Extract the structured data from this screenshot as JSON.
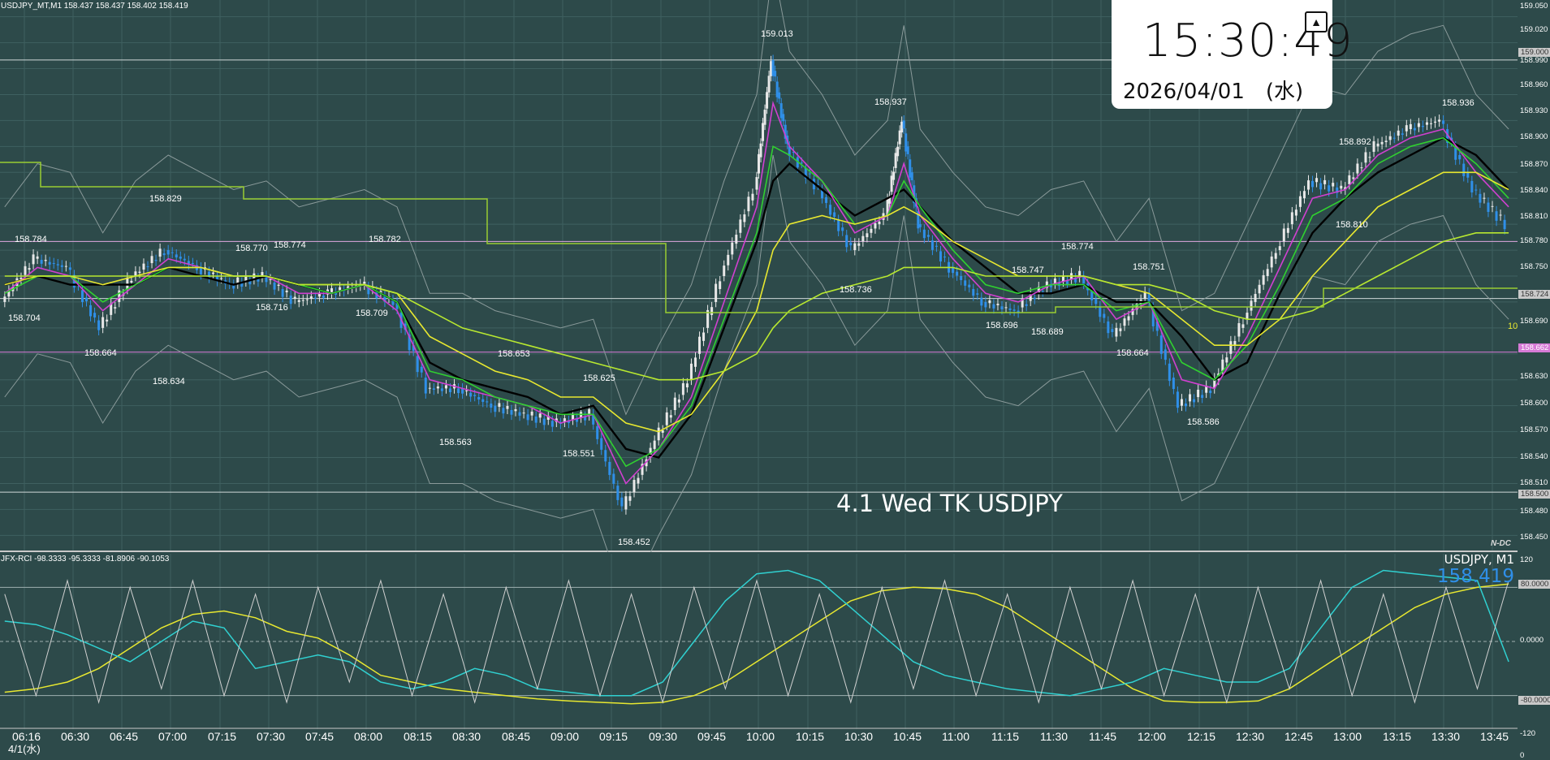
{
  "header": {
    "info": "USDJPY_MT,M1  158.437 158.437 158.402 158.419"
  },
  "clock": {
    "time": "15:30:49",
    "date": "2026/04/01　(水)",
    "pin_icon": "pin-icon"
  },
  "chart_label": "4.1 Wed TK USDJPY",
  "symbol_label": "USDJPY, M1",
  "symbol_price": "158.419",
  "nav_badge": "N-DC",
  "rci_info": "JFX-RCI -98.3333 -95.3333 -81.8906 -90.1053",
  "date_label": "4/1(水)",
  "extreme_labels": [
    {
      "text": "158.784"
    },
    {
      "text": "158.704"
    },
    {
      "text": "158.664"
    },
    {
      "text": "158.829"
    },
    {
      "text": "158.634"
    },
    {
      "text": "158.770"
    },
    {
      "text": "158.774"
    },
    {
      "text": "158.716"
    },
    {
      "text": "158.782"
    },
    {
      "text": "158.709"
    },
    {
      "text": "158.563"
    },
    {
      "text": "158.653"
    },
    {
      "text": "158.551"
    },
    {
      "text": "158.625"
    },
    {
      "text": "158.452"
    },
    {
      "text": "159.013"
    },
    {
      "text": "158.937"
    },
    {
      "text": "158.736"
    },
    {
      "text": "158.747"
    },
    {
      "text": "158.696"
    },
    {
      "text": "158.689"
    },
    {
      "text": "158.774"
    },
    {
      "text": "158.751"
    },
    {
      "text": "158.664"
    },
    {
      "text": "158.586"
    },
    {
      "text": "158.892"
    },
    {
      "text": "158.810"
    },
    {
      "text": "158.936"
    }
  ],
  "time_axis": [
    "06:16",
    "06:30",
    "06:45",
    "07:00",
    "07:15",
    "07:30",
    "07:45",
    "08:00",
    "08:15",
    "08:30",
    "08:45",
    "09:00",
    "09:15",
    "09:30",
    "09:45",
    "10:00",
    "10:15",
    "10:30",
    "10:45",
    "11:00",
    "11:15",
    "11:30",
    "11:45",
    "12:00",
    "12:15",
    "12:30",
    "12:45",
    "13:00",
    "13:15",
    "13:30",
    "13:45"
  ],
  "price_axis": [
    {
      "text": "159.050"
    },
    {
      "text": "159.020"
    },
    {
      "text": "159.000",
      "style": "boxed"
    },
    {
      "text": "158.990"
    },
    {
      "text": "158.960"
    },
    {
      "text": "158.930"
    },
    {
      "text": "158.900"
    },
    {
      "text": "158.870"
    },
    {
      "text": "158.840"
    },
    {
      "text": "158.810"
    },
    {
      "text": "158.780"
    },
    {
      "text": "158.750"
    },
    {
      "text": "158.724",
      "style": "boxed"
    },
    {
      "text": "158.690"
    },
    {
      "text": "158.662",
      "style": "boxed-pink"
    },
    {
      "text": "158.630"
    },
    {
      "text": "158.600"
    },
    {
      "text": "158.570"
    },
    {
      "text": "158.540"
    },
    {
      "text": "158.510"
    },
    {
      "text": "158.500",
      "style": "boxed"
    },
    {
      "text": "158.480"
    },
    {
      "text": "158.450"
    }
  ],
  "rci_axis": [
    {
      "text": "120"
    },
    {
      "text": "80.0000",
      "style": "boxed"
    },
    {
      "text": "0.0000"
    },
    {
      "text": "-80.0000",
      "style": "boxed"
    },
    {
      "text": "-120"
    },
    {
      "text": "0"
    }
  ],
  "counter_label": "10",
  "chart_data": {
    "type": "line",
    "title": "4.1 Wed TK USDJPY",
    "symbol": "USDJPY",
    "timeframe": "M1",
    "ylim": [
      158.44,
      159.06
    ],
    "x_ticks": [
      "06:16",
      "06:30",
      "06:45",
      "07:00",
      "07:15",
      "07:30",
      "07:45",
      "08:00",
      "08:15",
      "08:30",
      "08:45",
      "09:00",
      "09:15",
      "09:30",
      "09:45",
      "10:00",
      "10:15",
      "10:30",
      "10:45",
      "11:00",
      "11:15",
      "11:30",
      "11:45",
      "12:00",
      "12:15",
      "12:30",
      "12:45",
      "13:00",
      "13:15",
      "13:30",
      "13:45"
    ],
    "horizontal_lines": [
      {
        "value": 159.0,
        "color": "#cfd8d8"
      },
      {
        "value": 158.79,
        "color": "#e0a8e0"
      },
      {
        "value": 158.724,
        "color": "#cfd8d8"
      },
      {
        "value": 158.662,
        "color": "#d67ad6"
      },
      {
        "value": 158.5,
        "color": "#cfd8d8"
      }
    ],
    "price_path": {
      "x": [
        "06:10",
        "06:20",
        "06:30",
        "06:40",
        "06:50",
        "07:00",
        "07:10",
        "07:20",
        "07:30",
        "07:40",
        "07:50",
        "08:00",
        "08:10",
        "08:20",
        "08:30",
        "08:40",
        "08:50",
        "09:00",
        "09:10",
        "09:20",
        "09:30",
        "09:40",
        "09:50",
        "10:00",
        "10:05",
        "10:10",
        "10:20",
        "10:30",
        "10:40",
        "10:45",
        "10:50",
        "11:00",
        "11:10",
        "11:20",
        "11:30",
        "11:40",
        "11:50",
        "12:00",
        "12:10",
        "12:20",
        "12:30",
        "12:40",
        "12:50",
        "13:00",
        "13:10",
        "13:20",
        "13:30",
        "13:40",
        "13:50"
      ],
      "y": [
        158.72,
        158.77,
        158.76,
        158.69,
        158.75,
        158.78,
        158.76,
        158.74,
        158.75,
        158.72,
        158.73,
        158.74,
        158.72,
        158.62,
        158.62,
        158.6,
        158.59,
        158.58,
        158.59,
        158.48,
        158.56,
        158.63,
        158.75,
        158.85,
        159.0,
        158.9,
        158.85,
        158.78,
        158.82,
        158.93,
        158.81,
        158.76,
        158.72,
        158.71,
        158.74,
        158.75,
        158.68,
        158.73,
        158.6,
        158.62,
        158.7,
        158.78,
        158.86,
        158.85,
        158.9,
        158.92,
        158.93,
        158.85,
        158.81
      ]
    },
    "series": [
      {
        "color": "#000000",
        "values": [
          158.74,
          158.75,
          158.74,
          158.74,
          158.74,
          158.76,
          158.75,
          158.74,
          158.75,
          158.74,
          158.73,
          158.74,
          158.72,
          158.65,
          158.63,
          158.62,
          158.61,
          158.59,
          158.6,
          158.55,
          158.54,
          158.59,
          158.69,
          158.79,
          158.86,
          158.88,
          158.85,
          158.82,
          158.84,
          158.85,
          158.83,
          158.79,
          158.76,
          158.73,
          158.73,
          158.74,
          158.72,
          158.72,
          158.68,
          158.63,
          158.65,
          158.73,
          158.8,
          158.84,
          158.87,
          158.89,
          158.91,
          158.89,
          158.85
        ]
      },
      {
        "color": "#d040d0",
        "values": [
          158.73,
          158.76,
          158.75,
          158.71,
          158.74,
          158.77,
          158.76,
          158.75,
          158.75,
          158.73,
          158.73,
          158.74,
          158.71,
          158.63,
          158.62,
          158.61,
          158.6,
          158.58,
          158.59,
          158.51,
          158.55,
          158.61,
          158.72,
          158.83,
          158.95,
          158.9,
          158.86,
          158.8,
          158.82,
          158.88,
          158.82,
          158.77,
          158.73,
          158.72,
          158.74,
          158.75,
          158.7,
          158.72,
          158.63,
          158.62,
          158.68,
          158.76,
          158.84,
          158.85,
          158.89,
          158.91,
          158.92,
          158.87,
          158.83
        ]
      },
      {
        "color": "#30d030",
        "values": [
          158.73,
          158.75,
          158.75,
          158.72,
          158.74,
          158.76,
          158.76,
          158.75,
          158.75,
          158.74,
          158.73,
          158.74,
          158.72,
          158.64,
          158.63,
          158.61,
          158.6,
          158.59,
          158.59,
          158.53,
          158.55,
          158.6,
          158.7,
          158.8,
          158.9,
          158.89,
          158.86,
          158.81,
          158.82,
          158.86,
          158.83,
          158.78,
          158.74,
          158.73,
          158.74,
          158.74,
          158.71,
          158.72,
          158.65,
          158.63,
          158.67,
          158.74,
          158.82,
          158.84,
          158.88,
          158.9,
          158.91,
          158.88,
          158.84
        ]
      },
      {
        "color": "#e8e830",
        "values": [
          158.74,
          158.75,
          158.75,
          158.74,
          158.75,
          158.76,
          158.76,
          158.75,
          158.75,
          158.74,
          158.74,
          158.74,
          158.73,
          158.68,
          158.66,
          158.64,
          158.63,
          158.61,
          158.61,
          158.58,
          158.57,
          158.59,
          158.64,
          158.71,
          158.78,
          158.81,
          158.82,
          158.81,
          158.82,
          158.83,
          158.82,
          158.79,
          158.77,
          158.75,
          158.75,
          158.75,
          158.74,
          158.73,
          158.7,
          158.67,
          158.67,
          158.7,
          158.75,
          158.79,
          158.83,
          158.85,
          158.87,
          158.87,
          158.85
        ]
      },
      {
        "color": "#b8e830",
        "values": [
          158.75,
          158.75,
          158.75,
          158.75,
          158.75,
          158.75,
          158.75,
          158.75,
          158.75,
          158.74,
          158.74,
          158.74,
          158.73,
          158.71,
          158.69,
          158.68,
          158.67,
          158.66,
          158.65,
          158.64,
          158.63,
          158.63,
          158.64,
          158.66,
          158.69,
          158.71,
          158.73,
          158.74,
          158.75,
          158.76,
          158.76,
          158.76,
          158.75,
          158.75,
          158.75,
          158.75,
          158.74,
          158.74,
          158.73,
          158.71,
          158.7,
          158.7,
          158.71,
          158.73,
          158.75,
          158.77,
          158.79,
          158.8,
          158.8
        ]
      }
    ],
    "rci": {
      "ylim": [
        -120,
        120
      ],
      "levels": [
        80,
        0,
        -80
      ],
      "series": [
        {
          "color": "#e8e830",
          "values": [
            -75,
            -70,
            -60,
            -40,
            -10,
            20,
            40,
            45,
            35,
            15,
            5,
            -20,
            -50,
            -60,
            -70,
            -75,
            -80,
            -85,
            -88,
            -90,
            -92,
            -90,
            -80,
            -60,
            -30,
            0,
            30,
            60,
            75,
            80,
            78,
            70,
            50,
            20,
            -10,
            -40,
            -70,
            -88,
            -90,
            -90,
            -88,
            -70,
            -40,
            -10,
            20,
            50,
            70,
            80,
            85
          ]
        },
        {
          "color": "#30d0d0",
          "values": [
            30,
            25,
            10,
            -10,
            -30,
            0,
            30,
            20,
            -40,
            -30,
            -20,
            -30,
            -60,
            -70,
            -60,
            -40,
            -50,
            -70,
            -75,
            -80,
            -80,
            -60,
            0,
            60,
            100,
            105,
            90,
            50,
            10,
            -30,
            -50,
            -60,
            -70,
            -75,
            -80,
            -70,
            -60,
            -40,
            -50,
            -60,
            -60,
            -40,
            20,
            80,
            105,
            100,
            95,
            90,
            -30
          ]
        },
        {
          "color": "#d0d0d0",
          "values": [
            70,
            -80,
            90,
            -90,
            80,
            -70,
            90,
            -80,
            70,
            -90,
            80,
            -60,
            90,
            -80,
            70,
            -90,
            80,
            -70,
            90,
            -80,
            70,
            -90,
            80,
            -70,
            90,
            -80,
            70,
            -90,
            80,
            -70,
            90,
            -80,
            70,
            -90,
            80,
            -70,
            90,
            -80,
            70,
            -90,
            80,
            -70,
            90,
            -80,
            70,
            -90,
            80,
            -70,
            90
          ]
        }
      ]
    }
  }
}
